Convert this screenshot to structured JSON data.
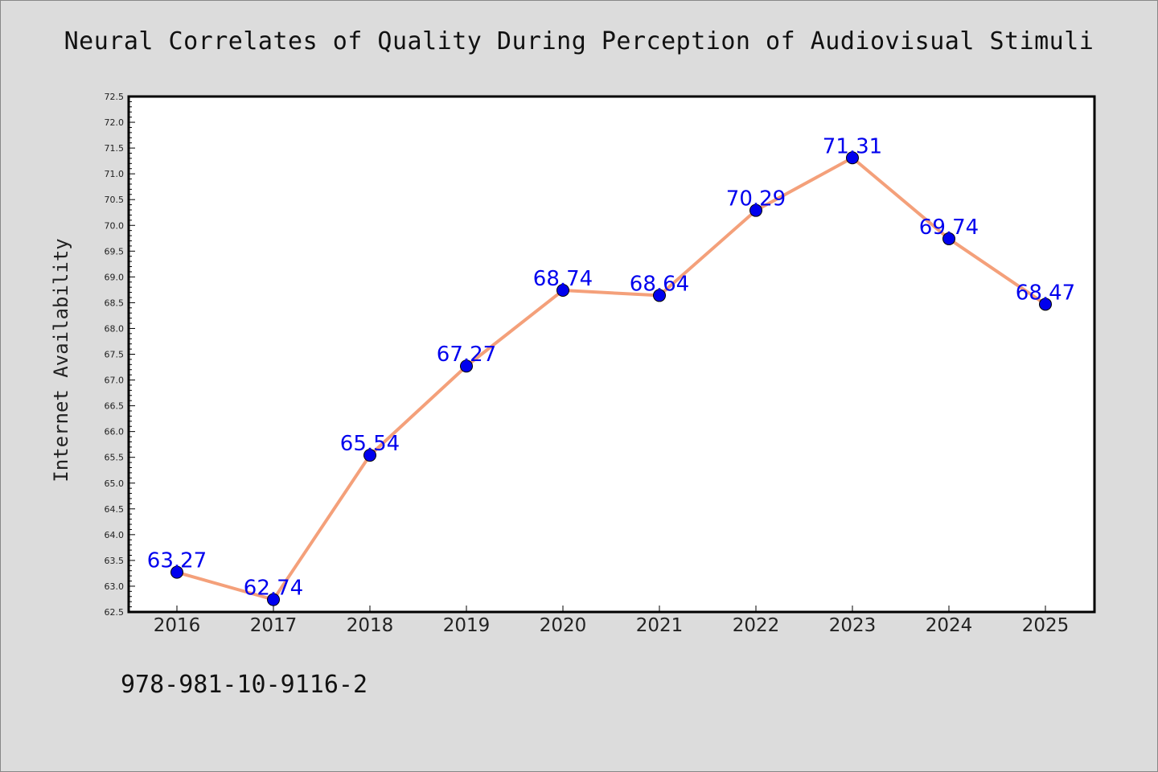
{
  "chart_data": {
    "type": "line",
    "title": "Neural Correlates of Quality During Perception of Audiovisual Stimuli",
    "xlabel": "",
    "ylabel": "Internet Availability",
    "categories": [
      "2016",
      "2017",
      "2018",
      "2019",
      "2020",
      "2021",
      "2022",
      "2023",
      "2024",
      "2025"
    ],
    "series": [
      {
        "values": [
          63.27,
          62.74,
          65.54,
          67.27,
          68.74,
          68.64,
          70.29,
          71.31,
          69.74,
          68.47
        ],
        "data_labels": [
          "63.27",
          "62.74",
          "65.54",
          "67.27",
          "68.74",
          "68.64",
          "70.29",
          "71.31",
          "69.74",
          "68.47"
        ]
      }
    ],
    "ylim": [
      62.5,
      72.5
    ],
    "y_major_step": 0.5,
    "y_tick_labels": [
      "62.5",
      "63.0",
      "63.5",
      "64.0",
      "64.5",
      "65.0",
      "65.5",
      "66.0",
      "66.5",
      "67.0",
      "67.5",
      "68.0",
      "68.5",
      "69.0",
      "69.5",
      "70.0",
      "70.5",
      "71.0",
      "71.5",
      "72.0",
      "72.5"
    ],
    "grid": false,
    "legend": "none"
  },
  "footer": {
    "code": "978-981-10-9116-2"
  },
  "colors": {
    "background": "#dcdcdc",
    "plot_background": "#ffffff",
    "line": "#f4a07a",
    "marker": "#0000ee",
    "data_label": "#0000ee",
    "axis": "#000000"
  }
}
